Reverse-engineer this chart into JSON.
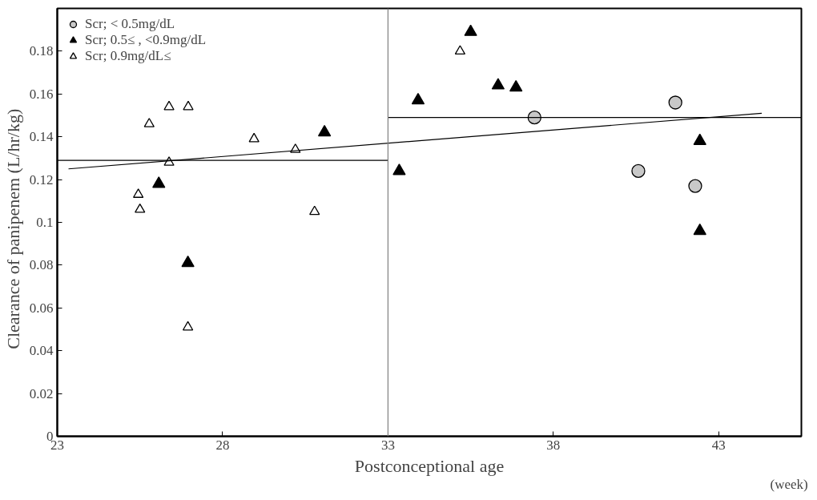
{
  "chart_data": {
    "type": "scatter",
    "xlabel": "Postconceptional age",
    "ylabel": "Clearance of panipenem    (L/hr/kg)",
    "annotations": [
      "(week)"
    ],
    "xlim": [
      23,
      45.5
    ],
    "xticks": [
      23,
      28,
      33,
      38,
      43
    ],
    "ylim": [
      0,
      0.2
    ],
    "yticks": [
      0,
      0.02,
      0.04,
      0.06,
      0.08,
      0.1,
      0.12,
      0.14,
      0.16,
      0.18
    ],
    "grid": false,
    "legend": "top left",
    "series": [
      {
        "name": "Scr; < 0.5mg/dL",
        "marker": "circle",
        "color": "#c8c8c8",
        "x": [
          37.43,
          41.69,
          40.57,
          42.29
        ],
        "values": [
          0.149,
          0.156,
          0.124,
          0.117
        ]
      },
      {
        "name": "Scr; 0.5≤ , <0.9mg/dL",
        "marker": "triangle",
        "color": "#000000",
        "x": [
          26.07,
          31.08,
          26.95,
          33.34,
          33.91,
          35.5,
          36.33,
          36.87,
          42.43,
          42.43
        ],
        "values": [
          0.118,
          0.142,
          0.081,
          0.124,
          0.157,
          0.189,
          0.164,
          0.163,
          0.138,
          0.096
        ]
      },
      {
        "name": "Scr; 0.9mg/dL≤",
        "marker": "triangle",
        "color": "#ffffff",
        "x": [
          26.38,
          26.96,
          25.78,
          26.38,
          25.45,
          25.5,
          28.95,
          30.2,
          30.78,
          26.95,
          35.18
        ],
        "values": [
          0.154,
          0.154,
          0.146,
          0.128,
          0.113,
          0.106,
          0.139,
          0.134,
          0.105,
          0.051,
          0.18
        ]
      },
      {
        "type": "line",
        "color": "#000000",
        "x": [
          23,
          33
        ],
        "values": [
          0.129,
          0.129
        ]
      },
      {
        "type": "line",
        "color": "#000000",
        "x": [
          33,
          45.5
        ],
        "values": [
          0.149,
          0.149
        ]
      },
      {
        "type": "line",
        "color": "#000000",
        "x": [
          23.34,
          44.3
        ],
        "values": [
          0.125,
          0.151
        ]
      }
    ],
    "ref_lines": [
      {
        "axis": "x",
        "value": 33,
        "color": "#808080"
      }
    ]
  }
}
